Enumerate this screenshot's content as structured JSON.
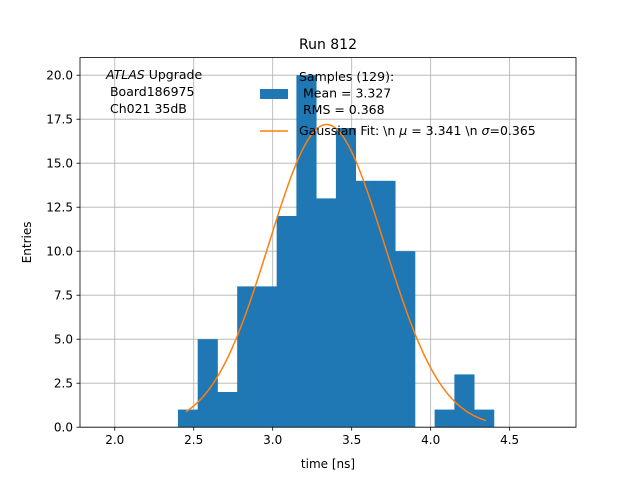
{
  "chart_data": {
    "type": "bar",
    "title": "Run 812",
    "xlabel": "time [ns]",
    "ylabel": "Entries",
    "xlim": [
      1.78,
      4.92
    ],
    "ylim": [
      0,
      21
    ],
    "xticks": [
      2.0,
      2.5,
      3.0,
      3.5,
      4.0,
      4.5
    ],
    "xtick_labels": [
      "2.0",
      "2.5",
      "3.0",
      "3.5",
      "4.0",
      "4.5"
    ],
    "yticks": [
      0,
      2.5,
      5,
      7.5,
      10,
      12.5,
      15,
      17.5,
      20
    ],
    "ytick_labels": [
      "0.0",
      "2.5",
      "5.0",
      "7.5",
      "10.0",
      "12.5",
      "15.0",
      "17.5",
      "20.0"
    ],
    "grid": true,
    "bin_edges": [
      2.4,
      2.525,
      2.65,
      2.775,
      2.9,
      3.025,
      3.15,
      3.275,
      3.4,
      3.525,
      3.65,
      3.775,
      3.9,
      4.025,
      4.15,
      4.275,
      4.4
    ],
    "counts": [
      1,
      5,
      2,
      8,
      8,
      12,
      20,
      13,
      17,
      14,
      14,
      10,
      0,
      1,
      3,
      1
    ],
    "hist_color": "#1f77b4",
    "fit_color": "#ff7f0e",
    "fit": {
      "amplitude": 17.2,
      "mu": 3.341,
      "sigma": 0.365,
      "x_range": [
        2.45,
        4.35
      ]
    },
    "annotation": {
      "italic": "ATLAS",
      "line1_rest": " Upgrade",
      "line2": " Board186975",
      "line3": " Ch021 35dB"
    },
    "legend": {
      "position": "upper center",
      "hist_label": [
        "Samples (129):",
        " Mean = 3.327",
        " RMS = 0.368"
      ],
      "fit_label_before_mu": "Gaussian Fit: \\n ",
      "mu_symbol": "μ",
      "fit_label_mid": " = 3.341 \\n ",
      "sigma_symbol": "σ",
      "fit_label_end": "=0.365"
    }
  }
}
